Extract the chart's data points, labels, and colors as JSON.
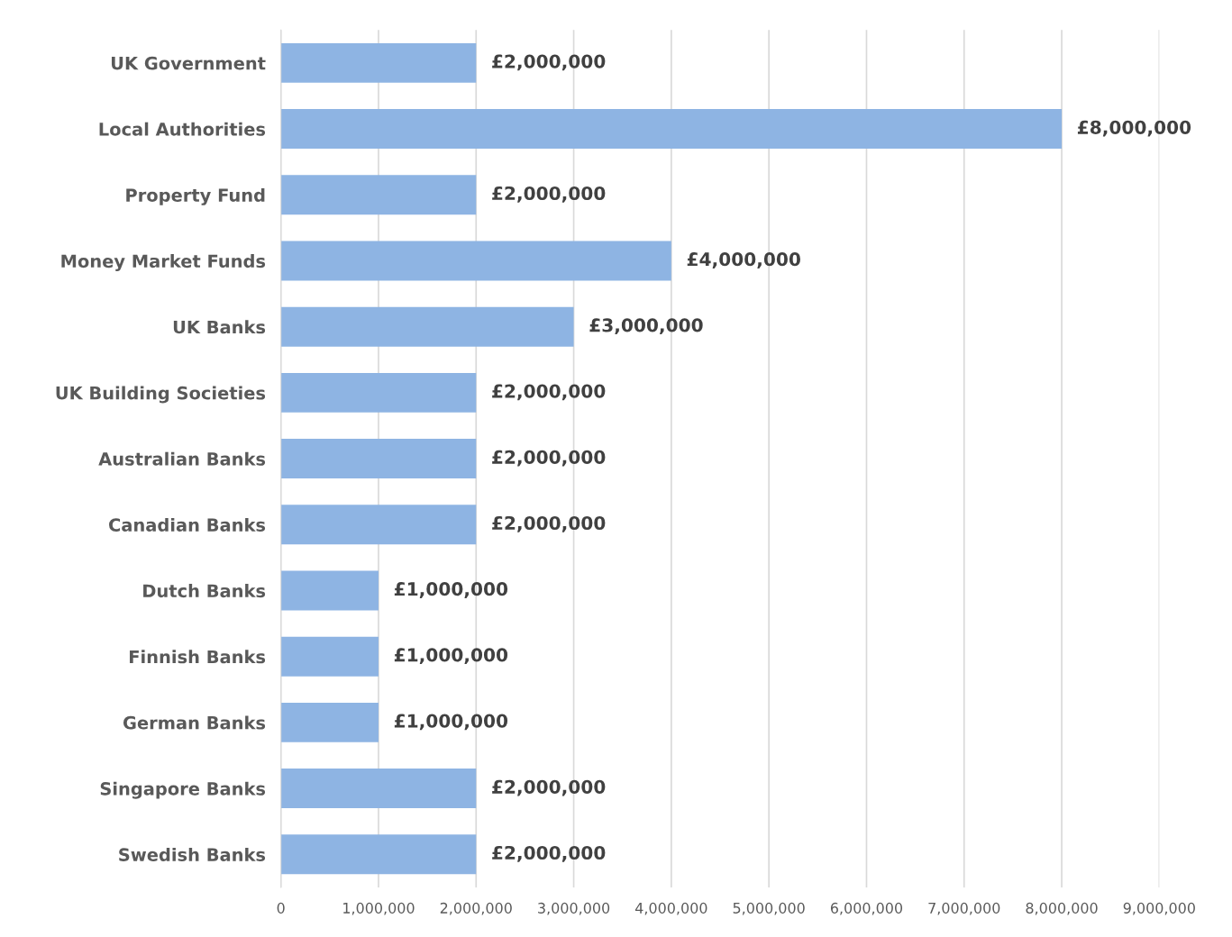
{
  "chart_data": {
    "type": "bar",
    "orientation": "horizontal",
    "categories": [
      "UK Government",
      "Local Authorities",
      "Property Fund",
      "Money Market Funds",
      "UK Banks",
      "UK Building Societies",
      "Australian Banks",
      "Canadian Banks",
      "Dutch Banks",
      "Finnish Banks",
      "German Banks",
      "Singapore Banks",
      "Swedish Banks"
    ],
    "values": [
      2000000,
      8000000,
      2000000,
      4000000,
      3000000,
      2000000,
      2000000,
      2000000,
      1000000,
      1000000,
      1000000,
      2000000,
      2000000
    ],
    "value_labels": [
      "£2,000,000",
      "£8,000,000",
      "£2,000,000",
      "£4,000,000",
      "£3,000,000",
      "£2,000,000",
      "£2,000,000",
      "£2,000,000",
      "£1,000,000",
      "£1,000,000",
      "£1,000,000",
      "£2,000,000",
      "£2,000,000"
    ],
    "color": "#8eb4e3",
    "xlim": [
      0,
      9000000
    ],
    "xticks": [
      0,
      {
        "value": 1000000,
        "label": "1,000,000"
      },
      {
        "value": 2000000,
        "label": "2,000,000"
      },
      {
        "value": 3000000,
        "label": "3,000,000"
      },
      {
        "value": 4000000,
        "label": "4,000,000"
      },
      {
        "value": 5000000,
        "label": "5,000,000"
      },
      {
        "value": 6000000,
        "label": "6,000,000"
      },
      {
        "value": 7000000,
        "label": "7,000,000"
      },
      {
        "value": 8000000,
        "label": "8,000,000"
      },
      {
        "value": 9000000,
        "label": "9,000,000"
      }
    ],
    "grid": "x",
    "legend": false
  }
}
